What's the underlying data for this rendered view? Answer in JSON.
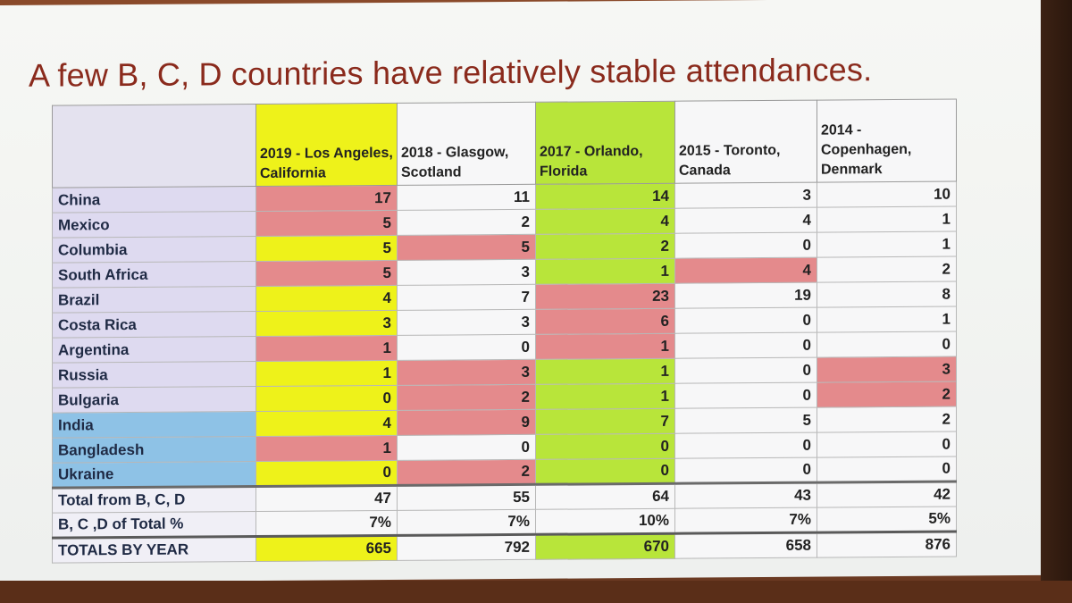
{
  "slide": {
    "title": "A few B, C, D countries have relatively stable attendances."
  },
  "table": {
    "headers": [
      "",
      "2019 - Los Angeles, California",
      "2018 - Glasgow, Scotland",
      "2017 - Orlando, Florida",
      "2015 - Toronto, Canada",
      "2014 - Copenhagen, Denmark"
    ],
    "rows": [
      {
        "country": "China",
        "values": [
          "17",
          "11",
          "14",
          "3",
          "10"
        ]
      },
      {
        "country": "Mexico",
        "values": [
          "5",
          "2",
          "4",
          "4",
          "1"
        ]
      },
      {
        "country": "Columbia",
        "values": [
          "5",
          "5",
          "2",
          "0",
          "1"
        ]
      },
      {
        "country": "South Africa",
        "values": [
          "5",
          "3",
          "1",
          "4",
          "2"
        ]
      },
      {
        "country": "Brazil",
        "values": [
          "4",
          "7",
          "23",
          "19",
          "8"
        ]
      },
      {
        "country": "Costa Rica",
        "values": [
          "3",
          "3",
          "6",
          "0",
          "1"
        ]
      },
      {
        "country": "Argentina",
        "values": [
          "1",
          "0",
          "1",
          "0",
          "0"
        ]
      },
      {
        "country": "Russia",
        "values": [
          "1",
          "3",
          "1",
          "0",
          "3"
        ]
      },
      {
        "country": "Bulgaria",
        "values": [
          "0",
          "2",
          "1",
          "0",
          "2"
        ]
      },
      {
        "country": "India",
        "values": [
          "4",
          "9",
          "7",
          "5",
          "2"
        ]
      },
      {
        "country": "Bangladesh",
        "values": [
          "1",
          "0",
          "0",
          "0",
          "0"
        ]
      },
      {
        "country": "Ukraine",
        "values": [
          "0",
          "2",
          "0",
          "0",
          "0"
        ]
      }
    ],
    "summary": [
      {
        "label": "Total from B, C, D",
        "values": [
          "47",
          "55",
          "64",
          "43",
          "42"
        ]
      },
      {
        "label": "B, C ,D of Total %",
        "values": [
          "7%",
          "7%",
          "10%",
          "7%",
          "5%"
        ]
      },
      {
        "label": "TOTALS BY YEAR",
        "values": [
          "665",
          "792",
          "670",
          "658",
          "876"
        ]
      }
    ]
  },
  "colors": {
    "title": "#8a2a1c",
    "red": "#e48a8c",
    "yellow": "#eef21a",
    "green": "#b8e53a",
    "blue": "#8ec2e6",
    "lavender": "#dedaf0"
  }
}
